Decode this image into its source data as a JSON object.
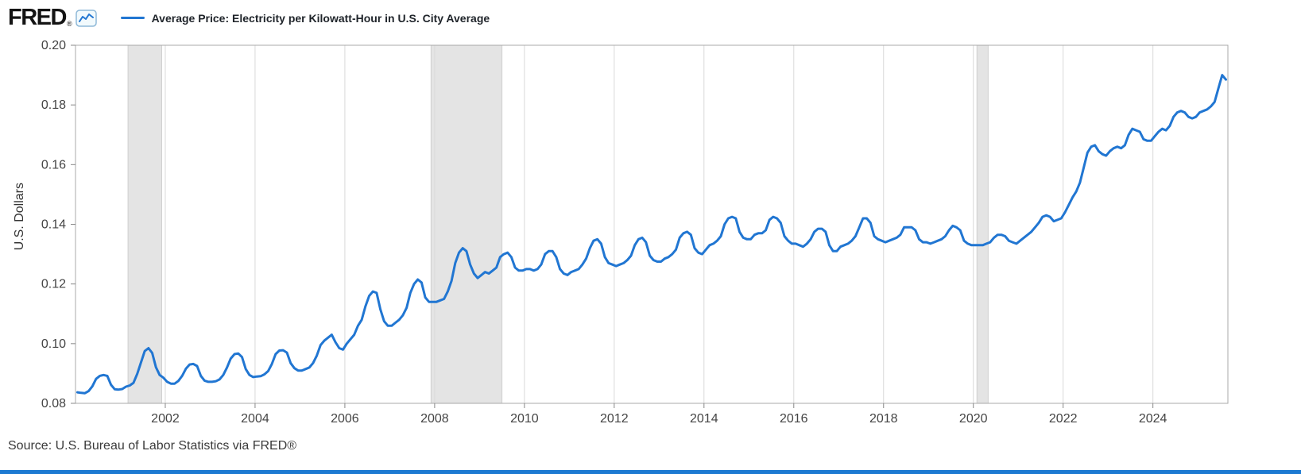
{
  "header": {
    "logo": "FRED",
    "registered": "®",
    "legend_label": "Average Price: Electricity per Kilowatt-Hour in U.S. City Average"
  },
  "footer": {
    "source": "Source: U.S. Bureau of Labor Statistics via FRED®"
  },
  "colors": {
    "line": "#2176d2",
    "recession": "#e4e4e4",
    "recession_edge": "#cfcfcf",
    "gridline": "#d9d9d9",
    "plot_border": "#a9a9a9",
    "tick": "#888888",
    "tick_label": "#444444",
    "accent_bar": "#1d7ad2"
  },
  "chart_data": {
    "type": "line",
    "title": "Average Price: Electricity per Kilowatt-Hour in U.S. City Average",
    "xlabel": "",
    "ylabel": "U.S. Dollars",
    "x_start": 2000.0,
    "x_end": 2025.67,
    "ylim": [
      0.08,
      0.2
    ],
    "y_ticks": [
      0.08,
      0.1,
      0.12,
      0.14,
      0.16,
      0.18,
      0.2
    ],
    "x_ticks": [
      2002,
      2004,
      2006,
      2008,
      2010,
      2012,
      2014,
      2016,
      2018,
      2020,
      2022,
      2024
    ],
    "grid": "vertical",
    "legend_position": "top",
    "recession_bands": [
      {
        "start": 2001.17,
        "end": 2001.92
      },
      {
        "start": 2007.92,
        "end": 2009.5
      },
      {
        "start": 2020.08,
        "end": 2020.33
      }
    ],
    "series": [
      {
        "name": "Average Price: Electricity per Kilowatt-Hour in U.S. City Average",
        "color": "#2176d2",
        "start": "2000-01",
        "frequency": "monthly",
        "units": "U.S. Dollars",
        "values": [
          0.0837,
          0.0835,
          0.0834,
          0.0841,
          0.0857,
          0.0882,
          0.0892,
          0.0895,
          0.0892,
          0.0862,
          0.0847,
          0.0846,
          0.0848,
          0.0856,
          0.086,
          0.0869,
          0.0899,
          0.0937,
          0.0975,
          0.0985,
          0.0969,
          0.0921,
          0.0895,
          0.0886,
          0.0872,
          0.0866,
          0.0866,
          0.0875,
          0.0892,
          0.0916,
          0.093,
          0.0932,
          0.0925,
          0.0892,
          0.0876,
          0.0872,
          0.0872,
          0.0874,
          0.088,
          0.0895,
          0.092,
          0.095,
          0.0965,
          0.0967,
          0.0955,
          0.0915,
          0.0895,
          0.0888,
          0.089,
          0.0891,
          0.0897,
          0.0908,
          0.0932,
          0.0965,
          0.0977,
          0.0978,
          0.097,
          0.0935,
          0.0918,
          0.091,
          0.091,
          0.0915,
          0.092,
          0.0935,
          0.096,
          0.0995,
          0.101,
          0.102,
          0.103,
          0.1005,
          0.0985,
          0.098,
          0.1,
          0.1015,
          0.103,
          0.106,
          0.108,
          0.1125,
          0.116,
          0.1175,
          0.117,
          0.1115,
          0.1075,
          0.106,
          0.106,
          0.107,
          0.108,
          0.1095,
          0.112,
          0.117,
          0.12,
          0.1215,
          0.1205,
          0.1155,
          0.114,
          0.114,
          0.114,
          0.1145,
          0.115,
          0.1175,
          0.121,
          0.127,
          0.1305,
          0.132,
          0.131,
          0.1265,
          0.1235,
          0.122,
          0.123,
          0.124,
          0.1235,
          0.1245,
          0.1255,
          0.129,
          0.13,
          0.1305,
          0.129,
          0.1255,
          0.1245,
          0.1245,
          0.125,
          0.125,
          0.1245,
          0.125,
          0.1265,
          0.13,
          0.131,
          0.131,
          0.129,
          0.125,
          0.1235,
          0.123,
          0.124,
          0.1245,
          0.125,
          0.1265,
          0.1285,
          0.132,
          0.1345,
          0.135,
          0.1335,
          0.129,
          0.127,
          0.1265,
          0.126,
          0.1265,
          0.127,
          0.128,
          0.1295,
          0.133,
          0.135,
          0.1355,
          0.134,
          0.1295,
          0.128,
          0.1275,
          0.1275,
          0.1285,
          0.129,
          0.13,
          0.1315,
          0.1355,
          0.137,
          0.1375,
          0.1365,
          0.132,
          0.1305,
          0.13,
          0.1315,
          0.133,
          0.1335,
          0.1345,
          0.136,
          0.14,
          0.142,
          0.1425,
          0.142,
          0.1375,
          0.1355,
          0.135,
          0.135,
          0.1365,
          0.137,
          0.137,
          0.138,
          0.1415,
          0.1425,
          0.142,
          0.1405,
          0.136,
          0.1345,
          0.1335,
          0.1335,
          0.133,
          0.1325,
          0.1335,
          0.135,
          0.1375,
          0.1385,
          0.1385,
          0.1375,
          0.133,
          0.131,
          0.131,
          0.1325,
          0.133,
          0.1335,
          0.1345,
          0.136,
          0.139,
          0.142,
          0.142,
          0.1405,
          0.136,
          0.135,
          0.1345,
          0.134,
          0.1345,
          0.135,
          0.1355,
          0.1365,
          0.139,
          0.139,
          0.139,
          0.138,
          0.135,
          0.134,
          0.134,
          0.1335,
          0.134,
          0.1345,
          0.135,
          0.136,
          0.138,
          0.1395,
          0.139,
          0.138,
          0.1345,
          0.1335,
          0.133,
          0.133,
          0.133,
          0.133,
          0.1335,
          0.134,
          0.1355,
          0.1365,
          0.1365,
          0.136,
          0.1345,
          0.134,
          0.1335,
          0.1345,
          0.1355,
          0.1365,
          0.1375,
          0.139,
          0.1405,
          0.1425,
          0.143,
          0.1425,
          0.141,
          0.1415,
          0.142,
          0.144,
          0.1465,
          0.149,
          0.151,
          0.154,
          0.159,
          0.164,
          0.166,
          0.1665,
          0.1645,
          0.1635,
          0.163,
          0.1645,
          0.1655,
          0.166,
          0.1655,
          0.1665,
          0.17,
          0.172,
          0.1715,
          0.171,
          0.1685,
          0.168,
          0.168,
          0.1695,
          0.171,
          0.172,
          0.1715,
          0.173,
          0.176,
          0.1775,
          0.178,
          0.1775,
          0.176,
          0.1755,
          0.176,
          0.1775,
          0.178,
          0.1785,
          0.1795,
          0.181,
          0.1855,
          0.19,
          0.1885
        ]
      }
    ]
  }
}
